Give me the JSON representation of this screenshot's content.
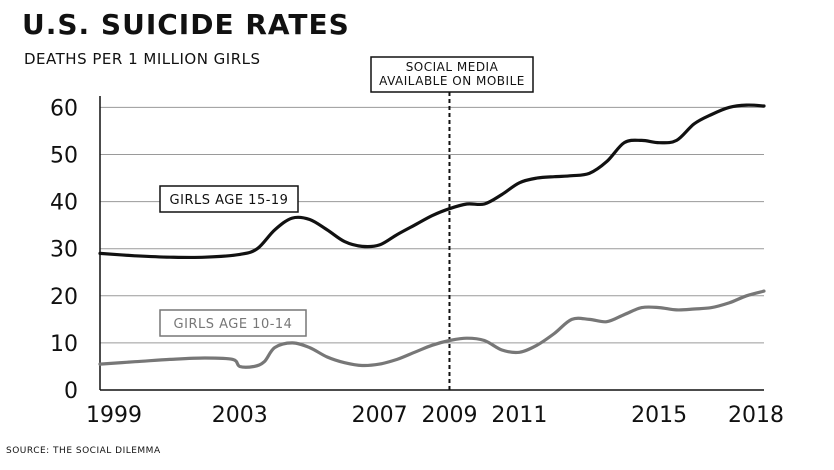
{
  "chart_data": {
    "type": "line",
    "title": "U.S. SUICIDE RATES",
    "subtitle": "DEATHS PER 1 MILLION GIRLS",
    "source": "SOURCE: THE SOCIAL DILEMMA",
    "xlim": [
      1999,
      2018
    ],
    "ylim": [
      0,
      62
    ],
    "xticks": [
      1999,
      2003,
      2007,
      2009,
      2011,
      2015,
      2018
    ],
    "yticks": [
      0,
      10,
      20,
      30,
      40,
      50,
      60
    ],
    "grid": "horizontal",
    "annotation": {
      "x": 2009,
      "lines": [
        "SOCIAL MEDIA",
        "AVAILABLE ON MOBILE"
      ]
    },
    "series": [
      {
        "name": "GIRLS AGE 15-19",
        "color": "#111111",
        "x": [
          1999,
          2000,
          2001,
          2002,
          2003,
          2003.5,
          2004,
          2004.5,
          2005,
          2005.5,
          2006,
          2006.5,
          2007,
          2007.5,
          2008,
          2008.5,
          2009,
          2009.5,
          2010,
          2010.5,
          2011,
          2011.5,
          2012,
          2012.5,
          2013,
          2013.5,
          2014,
          2014.5,
          2015,
          2015.5,
          2016,
          2016.5,
          2017,
          2017.5,
          2018
        ],
        "y": [
          29,
          28.5,
          28.2,
          28.2,
          28.8,
          30,
          34,
          36.5,
          36.2,
          34,
          31.5,
          30.5,
          30.8,
          33,
          35,
          37,
          38.5,
          39.5,
          39.5,
          41.5,
          44,
          45,
          45.3,
          45.5,
          46,
          48.5,
          52.5,
          53,
          52.5,
          53,
          56.5,
          58.5,
          60,
          60.5,
          60.3
        ]
      },
      {
        "name": "GIRLS AGE 10-14",
        "color": "#777777",
        "x": [
          1999,
          2000,
          2001,
          2002,
          2002.8,
          2003,
          2003.4,
          2003.7,
          2004,
          2004.5,
          2005,
          2005.5,
          2006,
          2006.5,
          2007,
          2007.5,
          2008,
          2008.5,
          2009,
          2009.5,
          2010,
          2010.5,
          2011,
          2011.5,
          2012,
          2012.5,
          2013,
          2013.5,
          2014,
          2014.5,
          2015,
          2015.5,
          2016,
          2016.5,
          2017,
          2017.5,
          2018
        ],
        "y": [
          5.5,
          6,
          6.5,
          6.8,
          6.5,
          5,
          5,
          6,
          9,
          10,
          9,
          7,
          5.8,
          5.2,
          5.5,
          6.5,
          8,
          9.5,
          10.5,
          11,
          10.5,
          8.5,
          8,
          9.5,
          12,
          15,
          15,
          14.5,
          16,
          17.5,
          17.5,
          17,
          17.2,
          17.5,
          18.5,
          20,
          21
        ]
      }
    ]
  },
  "series_labels": [
    "GIRLS AGE 15-19",
    "GIRLS AGE 10-14"
  ]
}
